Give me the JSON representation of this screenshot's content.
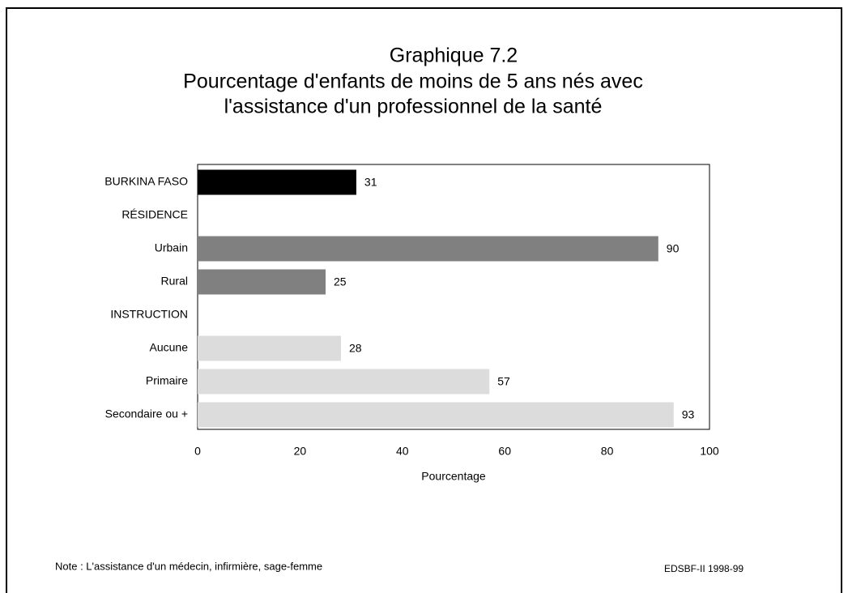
{
  "chart_data": {
    "type": "barh",
    "title": [
      "Graphique 7.2",
      "Pourcentage d'enfants de moins de 5 ans nés avec",
      "l'assistance d'un professionnel de la santé"
    ],
    "categories": [
      "BURKINA FASO",
      "RÉSIDENCE",
      "Urbain",
      "Rural",
      "INSTRUCTION",
      "Aucune",
      "Primaire",
      "Secondaire ou +"
    ],
    "values": [
      31,
      null,
      90,
      25,
      null,
      28,
      57,
      93
    ],
    "colors": [
      "#000000",
      null,
      "#808080",
      "#808080",
      null,
      "#dcdcdc",
      "#dcdcdc",
      "#dcdcdc"
    ],
    "xlim": [
      0,
      100
    ],
    "xticks": [
      0,
      20,
      40,
      60,
      80,
      100
    ],
    "xlabel": "Pourcentage",
    "note": "Note : L'assistance d'un médecin, infirmière, sage-femme",
    "source": "EDSBF-II 1998-99"
  }
}
